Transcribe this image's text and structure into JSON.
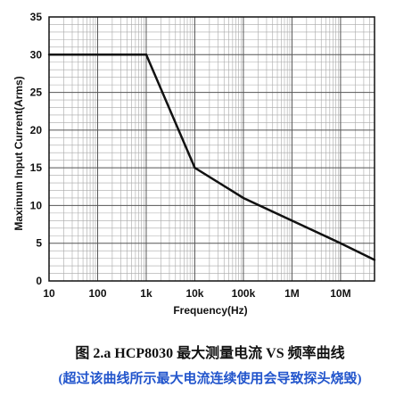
{
  "chart_data": {
    "type": "line",
    "title": "",
    "xlabel": "Frequency(Hz)",
    "ylabel": "Maximum  Input Current(Arms)",
    "x_scale": "log",
    "xlim": [
      10,
      50000000
    ],
    "ylim": [
      0,
      35
    ],
    "grid": true,
    "x_ticks": [
      {
        "value": 10,
        "label": "10"
      },
      {
        "value": 100,
        "label": "100"
      },
      {
        "value": 1000,
        "label": "1k"
      },
      {
        "value": 10000,
        "label": "10k"
      },
      {
        "value": 100000,
        "label": "100k"
      },
      {
        "value": 1000000,
        "label": "1M"
      },
      {
        "value": 10000000,
        "label": "10M"
      }
    ],
    "y_ticks": [
      0,
      5,
      10,
      15,
      20,
      25,
      30,
      35
    ],
    "series": [
      {
        "color": "#111111",
        "points": [
          {
            "x": 10,
            "y": 30
          },
          {
            "x": 1000,
            "y": 30
          },
          {
            "x": 10000,
            "y": 15
          },
          {
            "x": 100000,
            "y": 11
          },
          {
            "x": 1000000,
            "y": 8
          },
          {
            "x": 10000000,
            "y": 5
          },
          {
            "x": 50000000,
            "y": 2.8
          }
        ]
      }
    ]
  },
  "caption": {
    "title": "图 2.a HCP8030 最大测量电流 VS 频率曲线",
    "note": "(超过该曲线所示最大电流连续使用会导致探头烧毁)"
  }
}
